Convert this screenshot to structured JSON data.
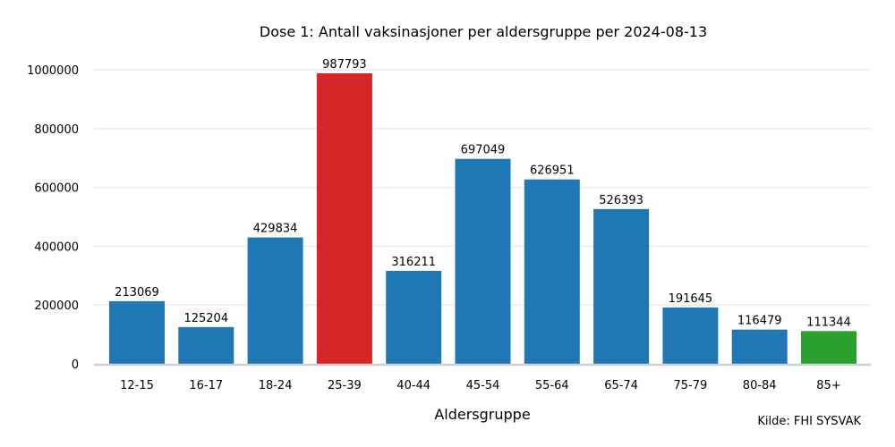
{
  "chart_data": {
    "type": "bar",
    "title": "Dose 1: Antall vaksinasjoner per aldersgruppe per 2024-08-13",
    "xlabel": "Aldersgruppe",
    "ylabel": "",
    "source": "Kilde: FHI SYSVAK",
    "categories": [
      "12-15",
      "16-17",
      "18-24",
      "25-39",
      "40-44",
      "45-54",
      "55-64",
      "65-74",
      "75-79",
      "80-84",
      "85+"
    ],
    "values": [
      213069,
      125204,
      429834,
      987793,
      316211,
      697049,
      626951,
      526393,
      191645,
      116479,
      111344
    ],
    "colors": [
      "#1f77b4",
      "#1f77b4",
      "#1f77b4",
      "#d62728",
      "#1f77b4",
      "#1f77b4",
      "#1f77b4",
      "#1f77b4",
      "#1f77b4",
      "#1f77b4",
      "#2ca02c"
    ],
    "ylim": [
      0,
      1000000
    ],
    "yticks": [
      "0",
      "200000",
      "400000",
      "600000",
      "800000",
      "1000000"
    ],
    "grid": true,
    "gridColor": "#ebebeb",
    "axisColor": "#d0d0d0"
  }
}
